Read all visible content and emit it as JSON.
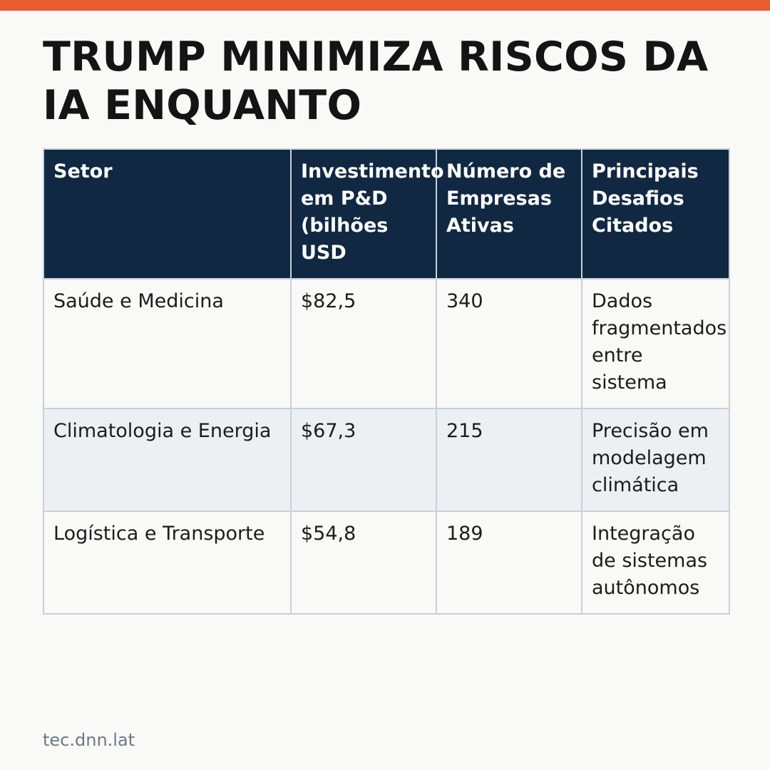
{
  "colors": {
    "accent": "#e85d2f",
    "header_background": "#102842",
    "header_text": "#ffffff",
    "stripe_row": "#edf0f3",
    "background": "#f9f9f7",
    "footer_text": "#6f7785"
  },
  "title": "TRUMP MINIMIZA RISCOS DA IA ENQUANTO",
  "table": {
    "headers": [
      "Setor",
      "Investimento em P&D (bilhões USD",
      "Número de Empresas Ativas",
      "Principais Desafios Citados"
    ],
    "rows": [
      [
        "Saúde e Medicina",
        "$82,5",
        "340",
        "Dados fragmentados entre sistema"
      ],
      [
        "Climatologia e Energia",
        "$67,3",
        "215",
        "Precisão em modelagem climática"
      ],
      [
        "Logística e Transporte",
        "$54,8",
        "189",
        "Integração de sistemas autônomos"
      ]
    ]
  },
  "footer": {
    "source": "tec.dnn.lat"
  }
}
